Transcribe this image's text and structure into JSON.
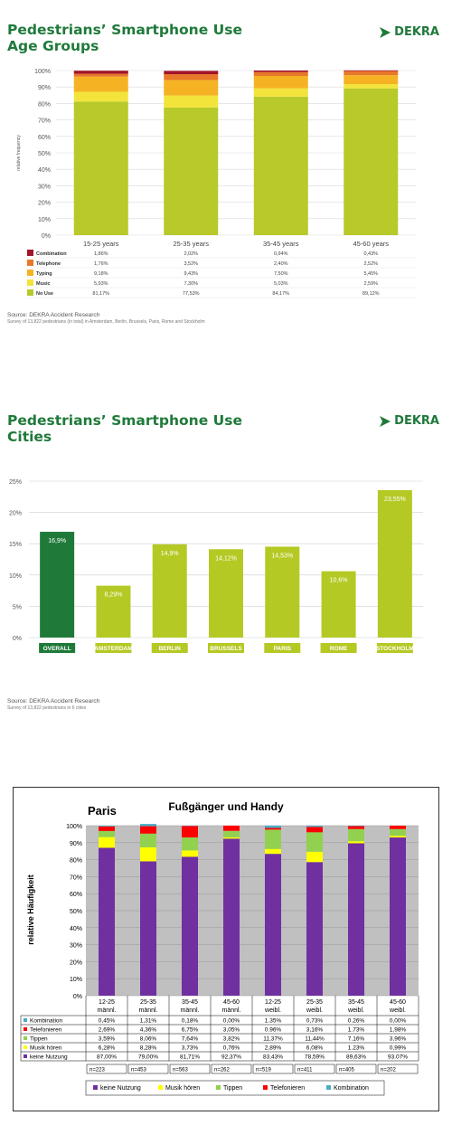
{
  "brand": "DEKRA",
  "colors": {
    "dekra_green": "#1f7a3a",
    "lime": "#b5c924"
  },
  "panel1": {
    "title_line1": "Pedestrians’ Smartphone Use",
    "title_line2": "Age Groups",
    "ylabel": "relative frequency",
    "source": "Source: DEKRA Accident Research",
    "source_note": "Survey of 13,822 pedestrians (in total) in Amsterdam, Berlin, Brussels, Paris, Rome and Stockholm"
  },
  "panel2": {
    "title_line1": "Pedestrians’ Smartphone Use",
    "title_line2": "Cities",
    "source": "Source: DEKRA Accident Research",
    "source_note": "Survey of 13,822 pedestrians in 6 cities"
  },
  "panel3": {
    "city": "Paris",
    "title": "Fußgänger und Handy",
    "ylabel": "relative Häufigkeit"
  },
  "chart_data": [
    {
      "type": "bar",
      "stacked": true,
      "categories": [
        "15-25 years",
        "25-35 years",
        "35-45 years",
        "45-60 years"
      ],
      "ylim": [
        0,
        100
      ],
      "yticks": [
        "0%",
        "10%",
        "20%",
        "30%",
        "40%",
        "50%",
        "60%",
        "70%",
        "80%",
        "90%",
        "100%"
      ],
      "series": [
        {
          "name": "No Use",
          "color": "#b8c92a",
          "values": [
            81.17,
            77.53,
            84.17,
            89.12
          ],
          "labels": [
            "81,17%",
            "77,53%",
            "84,17%",
            "89,12%"
          ]
        },
        {
          "name": "Music",
          "color": "#f2e43a",
          "values": [
            5.93,
            7.3,
            5.03,
            2.59
          ],
          "labels": [
            "5,93%",
            "7,30%",
            "5,03%",
            "2,59%"
          ]
        },
        {
          "name": "Typing",
          "color": "#f5b324",
          "values": [
            9.18,
            9.43,
            7.5,
            5.45
          ],
          "labels": [
            "9,18%",
            "9,43%",
            "7,50%",
            "5,45%"
          ]
        },
        {
          "name": "Telephone",
          "color": "#e8782a",
          "values": [
            1.76,
            3.52,
            2.4,
            2.52
          ],
          "labels": [
            "1,76%",
            "3,52%",
            "2,40%",
            "2,52%"
          ]
        },
        {
          "name": "Combination",
          "color": "#a2142a",
          "values": [
            1.86,
            2.02,
            0.94,
            0.43
          ],
          "labels": [
            "1,86%",
            "2,02%",
            "0,94%",
            "0,43%"
          ]
        }
      ]
    },
    {
      "type": "bar",
      "categories": [
        "OVERALL",
        "AMSTERDAM",
        "BERLIN",
        "BRUSSELS",
        "PARIS",
        "ROME",
        "STOCKHOLM"
      ],
      "values": [
        16.9,
        8.29,
        14.9,
        14.12,
        14.53,
        10.6,
        23.55
      ],
      "labels": [
        "16,9%",
        "8,29%",
        "14,9%",
        "14,12%",
        "14,53%",
        "10,6%",
        "23,55%"
      ],
      "colors": [
        "#1f7a3a",
        "#b5c924",
        "#b5c924",
        "#b5c924",
        "#b5c924",
        "#b5c924",
        "#b5c924"
      ],
      "ylim": [
        0,
        25
      ],
      "yticks": [
        "0%",
        "5%",
        "10%",
        "15%",
        "20%",
        "25%"
      ]
    },
    {
      "type": "bar",
      "stacked": true,
      "categories": [
        [
          "12-25",
          "männl."
        ],
        [
          "25-35",
          "männl."
        ],
        [
          "35-45",
          "männl."
        ],
        [
          "45-60",
          "männl."
        ],
        [
          "12-25",
          "weibl."
        ],
        [
          "25-35",
          "weibl."
        ],
        [
          "35-45",
          "weibl."
        ],
        [
          "45-60",
          "weibl."
        ]
      ],
      "n": [
        "n=223",
        "n=453",
        "n=563",
        "n=262",
        "n=519",
        "n=411",
        "n=405",
        "n=202"
      ],
      "ylim": [
        0,
        100
      ],
      "yticks": [
        "0%",
        "10%",
        "20%",
        "30%",
        "40%",
        "50%",
        "60%",
        "70%",
        "80%",
        "90%",
        "100%"
      ],
      "series": [
        {
          "name": "keine Nutzung",
          "color": "#7030a0",
          "values": [
            87.0,
            79.0,
            81.71,
            92.37,
            83.43,
            78.59,
            89.63,
            93.07
          ],
          "labels": [
            "87,00%",
            "79,00%",
            "81,71%",
            "92,37%",
            "83,43%",
            "78,59%",
            "89,63%",
            "93.07%"
          ]
        },
        {
          "name": "Musik hören",
          "color": "#ffff00",
          "values": [
            6.28,
            8.28,
            3.73,
            0.76,
            2.89,
            6.08,
            1.23,
            0.99
          ],
          "labels": [
            "6,28%",
            "8,28%",
            "3,73%",
            "0,76%",
            "2,89%",
            "6,08%",
            "1.23%",
            "0,99%"
          ]
        },
        {
          "name": "Tippen",
          "color": "#92d050",
          "values": [
            3.59,
            8.06,
            7.64,
            3.82,
            11.37,
            11.44,
            7.16,
            3.96
          ],
          "labels": [
            "3,59%",
            "8,06%",
            "7,64%",
            "3,82%",
            "11,37%",
            "11,44%",
            "7.16%",
            "3,96%"
          ]
        },
        {
          "name": "Telefonieren",
          "color": "#ff0000",
          "values": [
            2.69,
            4.36,
            6.75,
            3.05,
            0.96,
            3.16,
            1.73,
            1.98
          ],
          "labels": [
            "2,69%",
            "4,36%",
            "6,75%",
            "3,05%",
            "0.96%",
            "3,16%",
            "1.73%",
            "1,98%"
          ]
        },
        {
          "name": "Kombination",
          "color": "#4bacc6",
          "values": [
            0.45,
            1.31,
            0.18,
            0.0,
            1.35,
            0.73,
            0.26,
            0.0
          ],
          "labels": [
            "0,45%",
            "1,31%",
            "0,18%",
            "0,00%",
            "1.35%",
            "0,73%",
            "0.26%",
            "0,00%"
          ]
        }
      ]
    }
  ]
}
